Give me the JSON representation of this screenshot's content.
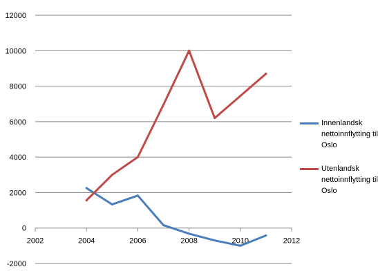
{
  "chart_data": {
    "type": "scatter",
    "xlim": [
      2002,
      2012
    ],
    "ylim": [
      -2000,
      12000
    ],
    "x_ticks": [
      "2002",
      "2004",
      "2006",
      "2008",
      "2010",
      "2012"
    ],
    "y_ticks": [
      "-2000",
      "0",
      "2000",
      "4000",
      "6000",
      "8000",
      "10000",
      "12000"
    ],
    "grid": "horizontal",
    "legend_position": "right",
    "series": [
      {
        "name": "Innenlandsk nettoinnflytting til Oslo",
        "color": "#4a7ebb",
        "x": [
          2004,
          2005,
          2006,
          2007,
          2008,
          2009,
          2010,
          2011
        ],
        "y": [
          2250,
          1330,
          1830,
          160,
          -320,
          -700,
          -1000,
          -420
        ]
      },
      {
        "name": "Utenlandsk nettoinnflytting til Oslo",
        "color": "#be4b48",
        "x": [
          2004,
          2005,
          2006,
          2007,
          2008,
          2009,
          2010,
          2011
        ],
        "y": [
          1560,
          3000,
          4000,
          6950,
          10000,
          6200,
          7450,
          8700
        ]
      }
    ]
  }
}
